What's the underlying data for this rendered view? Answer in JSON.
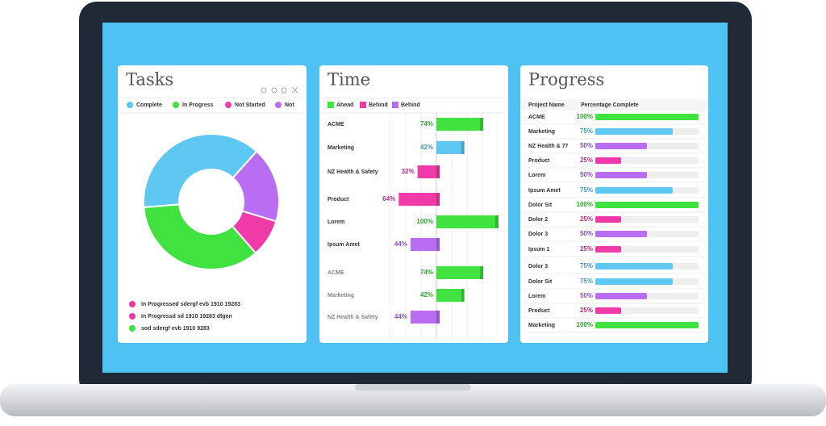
{
  "chart_data": [
    {
      "type": "pie",
      "title": "Tasks",
      "categories": [
        "Complete",
        "In Progress",
        "Not Started",
        "Not"
      ],
      "values": [
        38,
        35,
        9,
        18
      ],
      "colors": [
        "#5ec8f2",
        "#3fe23f",
        "#f03aa8",
        "#b96df2"
      ],
      "legend_items": [
        {
          "text": "In Progressed sdergf  evb  1910   19283",
          "color": "#e83aa5"
        },
        {
          "text": "In Progressd sd 1910   19283 dfgen",
          "color": "#e83aa5"
        },
        {
          "text": "sod sdergf evb 1910 9283",
          "color": "#3fe23f"
        }
      ]
    },
    {
      "type": "bar",
      "title": "Time",
      "legend": [
        {
          "name": "Ahead",
          "color": "#3fe23f"
        },
        {
          "name": "Behind",
          "color": "#f03aa8"
        },
        {
          "name": "Behind",
          "color": "#b96df2"
        }
      ],
      "categories": [
        "ACME",
        "Marketing",
        "NZ Health & Safety",
        "Product",
        "Lorem",
        "Ipsum Amet",
        "ACME",
        "Marketing",
        "NZ Health & Safety"
      ],
      "values": [
        74,
        42,
        32,
        64,
        100,
        44,
        74,
        42,
        44
      ],
      "value_labels": [
        "74%",
        "42%",
        "32%",
        "64%",
        "100%",
        "44%",
        "74%",
        "42%",
        "44%"
      ],
      "colors": [
        "#3fe23f",
        "#5ec8f2",
        "#f03aa8",
        "#f03aa8",
        "#3fe23f",
        "#b96df2",
        "#3fe23f",
        "#3fe23f",
        "#b96df2"
      ],
      "sides": [
        "right",
        "right",
        "left",
        "left",
        "right",
        "left",
        "right",
        "right",
        "left"
      ],
      "xlim": [
        0,
        100
      ]
    },
    {
      "type": "progress",
      "title": "Progress",
      "headers": [
        "Project  Name",
        "Percentage Complete"
      ],
      "categories": [
        "ACME",
        "Marketing",
        "NZ Health & 77",
        "Product",
        "Lorem",
        "Ipsum Amet",
        "Dolor Sit",
        "Dolor 2",
        "Dolor 3",
        "Ipsum 1",
        "Dolor 3",
        "Dolor Sit",
        "Lorem",
        "Product",
        "Marketing"
      ],
      "values": [
        100,
        75,
        50,
        25,
        50,
        75,
        100,
        25,
        50,
        25,
        75,
        75,
        50,
        25,
        100
      ],
      "value_labels": [
        "100%",
        "75%",
        "50%",
        "25%",
        "50%",
        "75%",
        "100%",
        "25%",
        "50%",
        "25%",
        "75%",
        "75%",
        "50%",
        "25%",
        "100%"
      ],
      "colors": [
        "#3fe23f",
        "#5ec8f2",
        "#b96df2",
        "#f03aa8",
        "#b96df2",
        "#5ec8f2",
        "#3fe23f",
        "#f03aa8",
        "#b96df2",
        "#f03aa8",
        "#5ec8f2",
        "#5ec8f2",
        "#b96df2",
        "#f03aa8",
        "#3fe23f"
      ],
      "xlim": [
        0,
        100
      ]
    }
  ]
}
